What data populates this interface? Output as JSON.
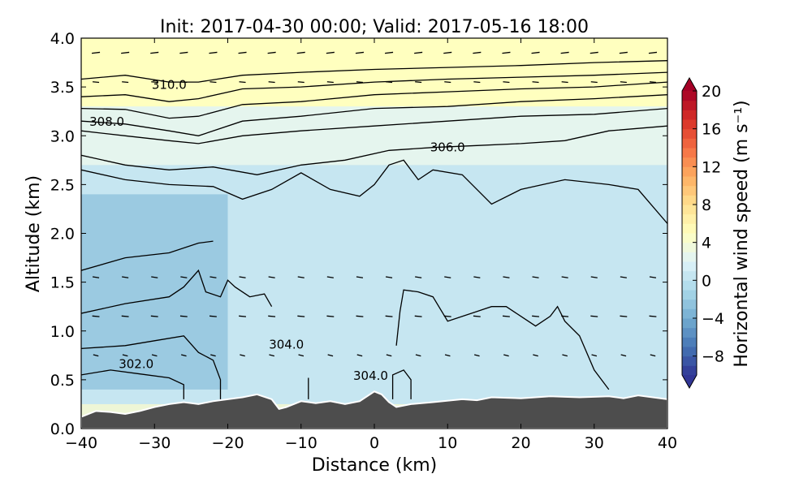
{
  "chart_data": {
    "type": "contour",
    "title": "Init: 2017-04-30 00:00; Valid: 2017-05-16 18:00",
    "xlabel": "Distance (km)",
    "ylabel": "Altitude (km)",
    "xlim": [
      -40,
      40
    ],
    "ylim": [
      0,
      4
    ],
    "xticks": [
      "−40",
      "−30",
      "−20",
      "−10",
      "0",
      "10",
      "20",
      "30",
      "40"
    ],
    "xtick_values": [
      -40,
      -30,
      -20,
      -10,
      0,
      10,
      20,
      30,
      40
    ],
    "yticks": [
      "0.0",
      "0.5",
      "1.0",
      "1.5",
      "2.0",
      "2.5",
      "3.0",
      "3.5",
      "4.0"
    ],
    "ytick_values": [
      0,
      0.5,
      1,
      1.5,
      2,
      2.5,
      3,
      3.5,
      4
    ],
    "colorbar": {
      "label": "Horizontal wind speed (m s⁻¹)",
      "range": [
        -10,
        20
      ],
      "ticks": [
        "20",
        "16",
        "12",
        "8",
        "4",
        "0",
        "−4",
        "−8"
      ],
      "tick_values": [
        20,
        16,
        12,
        8,
        4,
        0,
        -4,
        -8
      ],
      "colors": [
        "#313695",
        "#4575b4",
        "#74add1",
        "#abd9e9",
        "#e0f3f8",
        "#ffffbf",
        "#fee090",
        "#fdae61",
        "#f46d43",
        "#d73027",
        "#a50026"
      ]
    },
    "fill_bands": [
      {
        "name": "upper-orange",
        "value": 5,
        "y_bottom": 3.3,
        "y_top": 4.0
      },
      {
        "name": "upper-yellow",
        "value": 2.5,
        "y_bottom": 2.7,
        "y_top": 3.3
      },
      {
        "name": "mid-pale",
        "value": 0.5,
        "y_bottom": 0.25,
        "y_top": 2.7
      },
      {
        "name": "west-blue",
        "value": -2.5,
        "x_range": [
          -40,
          -20
        ],
        "y_range": [
          0.4,
          2.4
        ]
      }
    ],
    "theta_contours": [
      {
        "label": "310.0",
        "label_pos": [
          -28,
          3.48
        ],
        "points": [
          [
            -40,
            3.58
          ],
          [
            -34,
            3.62
          ],
          [
            -28,
            3.55
          ],
          [
            -24,
            3.55
          ],
          [
            -18,
            3.62
          ],
          [
            -10,
            3.65
          ],
          [
            0,
            3.68
          ],
          [
            10,
            3.7
          ],
          [
            20,
            3.72
          ],
          [
            30,
            3.75
          ],
          [
            40,
            3.77
          ]
        ]
      },
      {
        "label": "",
        "points": [
          [
            -40,
            3.4
          ],
          [
            -34,
            3.42
          ],
          [
            -28,
            3.35
          ],
          [
            -24,
            3.38
          ],
          [
            -18,
            3.48
          ],
          [
            -10,
            3.5
          ],
          [
            0,
            3.55
          ],
          [
            10,
            3.58
          ],
          [
            20,
            3.6
          ],
          [
            30,
            3.62
          ],
          [
            40,
            3.65
          ]
        ]
      },
      {
        "label": "",
        "points": [
          [
            -40,
            3.28
          ],
          [
            -34,
            3.27
          ],
          [
            -28,
            3.18
          ],
          [
            -24,
            3.2
          ],
          [
            -18,
            3.32
          ],
          [
            -10,
            3.35
          ],
          [
            0,
            3.42
          ],
          [
            10,
            3.45
          ],
          [
            20,
            3.48
          ],
          [
            30,
            3.5
          ],
          [
            40,
            3.55
          ]
        ]
      },
      {
        "label": "308.0",
        "label_pos": [
          -36.5,
          3.1
        ],
        "points": [
          [
            -40,
            3.15
          ],
          [
            -34,
            3.12
          ],
          [
            -28,
            3.05
          ],
          [
            -24,
            3.0
          ],
          [
            -18,
            3.15
          ],
          [
            -10,
            3.2
          ],
          [
            0,
            3.28
          ],
          [
            10,
            3.3
          ],
          [
            20,
            3.35
          ],
          [
            30,
            3.38
          ],
          [
            40,
            3.42
          ]
        ]
      },
      {
        "label": "",
        "points": [
          [
            -40,
            3.05
          ],
          [
            -34,
            3.0
          ],
          [
            -28,
            2.95
          ],
          [
            -24,
            2.92
          ],
          [
            -18,
            3.0
          ],
          [
            -10,
            3.05
          ],
          [
            0,
            3.1
          ],
          [
            10,
            3.15
          ],
          [
            20,
            3.2
          ],
          [
            30,
            3.22
          ],
          [
            40,
            3.28
          ]
        ]
      },
      {
        "label": "306.0",
        "label_pos": [
          10,
          2.84
        ],
        "points": [
          [
            -40,
            2.8
          ],
          [
            -34,
            2.7
          ],
          [
            -28,
            2.65
          ],
          [
            -22,
            2.68
          ],
          [
            -16,
            2.6
          ],
          [
            -10,
            2.7
          ],
          [
            -4,
            2.75
          ],
          [
            2,
            2.85
          ],
          [
            8,
            2.88
          ],
          [
            14,
            2.9
          ],
          [
            20,
            2.92
          ],
          [
            26,
            2.95
          ],
          [
            32,
            3.05
          ],
          [
            40,
            3.1
          ]
        ]
      },
      {
        "label": "",
        "points": [
          [
            -40,
            2.65
          ],
          [
            -34,
            2.55
          ],
          [
            -28,
            2.5
          ],
          [
            -22,
            2.48
          ],
          [
            -18,
            2.35
          ],
          [
            -14,
            2.45
          ],
          [
            -10,
            2.62
          ],
          [
            -6,
            2.45
          ],
          [
            -2,
            2.38
          ],
          [
            0,
            2.5
          ],
          [
            2,
            2.7
          ],
          [
            4,
            2.75
          ],
          [
            6,
            2.55
          ],
          [
            8,
            2.65
          ],
          [
            12,
            2.6
          ],
          [
            16,
            2.3
          ],
          [
            20,
            2.45
          ],
          [
            26,
            2.55
          ],
          [
            32,
            2.5
          ],
          [
            36,
            2.45
          ],
          [
            40,
            2.1
          ]
        ]
      },
      {
        "label": "",
        "points": [
          [
            -40,
            1.62
          ],
          [
            -34,
            1.75
          ],
          [
            -28,
            1.8
          ],
          [
            -24,
            1.9
          ],
          [
            -22,
            1.92
          ]
        ]
      },
      {
        "label": "",
        "points": [
          [
            -40,
            1.18
          ],
          [
            -34,
            1.28
          ],
          [
            -28,
            1.35
          ],
          [
            -26,
            1.45
          ],
          [
            -24,
            1.62
          ],
          [
            -23,
            1.4
          ],
          [
            -21,
            1.35
          ],
          [
            -20,
            1.52
          ],
          [
            -19,
            1.45
          ],
          [
            -17,
            1.35
          ],
          [
            -15,
            1.38
          ],
          [
            -14,
            1.25
          ]
        ]
      },
      {
        "label": "",
        "points": [
          [
            -40,
            0.82
          ],
          [
            -34,
            0.85
          ],
          [
            -30,
            0.9
          ],
          [
            -26,
            0.95
          ],
          [
            -24,
            0.78
          ],
          [
            -22,
            0.7
          ],
          [
            -21,
            0.5
          ],
          [
            -21,
            0.3
          ]
        ]
      },
      {
        "label": "302.0",
        "label_pos": [
          -32.5,
          0.62
        ],
        "points": [
          [
            -40,
            0.55
          ],
          [
            -36,
            0.6
          ],
          [
            -32,
            0.56
          ],
          [
            -28,
            0.52
          ],
          [
            -26,
            0.45
          ],
          [
            -26,
            0.3
          ]
        ]
      },
      {
        "label": "304.0",
        "label_pos": [
          -12,
          0.82
        ],
        "points": [
          [
            -9,
            0.3
          ],
          [
            -9,
            0.52
          ]
        ]
      },
      {
        "label": "304.0",
        "label_pos": [
          -0.5,
          0.5
        ],
        "points": [
          [
            3,
            0.85
          ],
          [
            3.5,
            1.2
          ],
          [
            4,
            1.42
          ],
          [
            6,
            1.4
          ],
          [
            8,
            1.35
          ],
          [
            10,
            1.1
          ],
          [
            12,
            1.15
          ],
          [
            14,
            1.2
          ],
          [
            16,
            1.25
          ],
          [
            18,
            1.25
          ],
          [
            20,
            1.15
          ],
          [
            22,
            1.05
          ],
          [
            24,
            1.15
          ],
          [
            25,
            1.25
          ],
          [
            26,
            1.1
          ],
          [
            28,
            0.95
          ],
          [
            30,
            0.6
          ],
          [
            32,
            0.4
          ]
        ]
      },
      {
        "label": "",
        "points": [
          [
            2.5,
            0.3
          ],
          [
            2.5,
            0.55
          ],
          [
            4,
            0.6
          ],
          [
            5,
            0.5
          ],
          [
            5,
            0.3
          ]
        ]
      }
    ],
    "terrain": [
      [
        -40,
        0.12
      ],
      [
        -38,
        0.18
      ],
      [
        -36,
        0.17
      ],
      [
        -34,
        0.15
      ],
      [
        -32,
        0.18
      ],
      [
        -30,
        0.22
      ],
      [
        -28,
        0.25
      ],
      [
        -26,
        0.27
      ],
      [
        -24,
        0.25
      ],
      [
        -22,
        0.28
      ],
      [
        -20,
        0.3
      ],
      [
        -18,
        0.32
      ],
      [
        -16,
        0.35
      ],
      [
        -14,
        0.3
      ],
      [
        -13,
        0.2
      ],
      [
        -12,
        0.22
      ],
      [
        -10,
        0.28
      ],
      [
        -8,
        0.26
      ],
      [
        -6,
        0.28
      ],
      [
        -4,
        0.25
      ],
      [
        -2,
        0.28
      ],
      [
        0,
        0.38
      ],
      [
        1,
        0.35
      ],
      [
        2,
        0.27
      ],
      [
        3,
        0.22
      ],
      [
        5,
        0.25
      ],
      [
        8,
        0.27
      ],
      [
        12,
        0.3
      ],
      [
        14,
        0.29
      ],
      [
        16,
        0.32
      ],
      [
        20,
        0.31
      ],
      [
        24,
        0.33
      ],
      [
        28,
        0.32
      ],
      [
        32,
        0.33
      ],
      [
        34,
        0.31
      ],
      [
        36,
        0.34
      ],
      [
        38,
        0.32
      ],
      [
        40,
        0.3
      ]
    ],
    "wind_vectors": [
      {
        "y": 3.85,
        "u": 2.5,
        "w": 0.3
      },
      {
        "y": 3.55,
        "u": 2.0,
        "w": -0.2
      },
      {
        "y": 1.55,
        "u": -2.0,
        "w": 0.3
      },
      {
        "y": 1.15,
        "u": -2.2,
        "w": 0.2
      },
      {
        "y": 0.75,
        "u": -1.6,
        "w": 0.4
      }
    ],
    "terrain_color": "#4d4d4d"
  }
}
